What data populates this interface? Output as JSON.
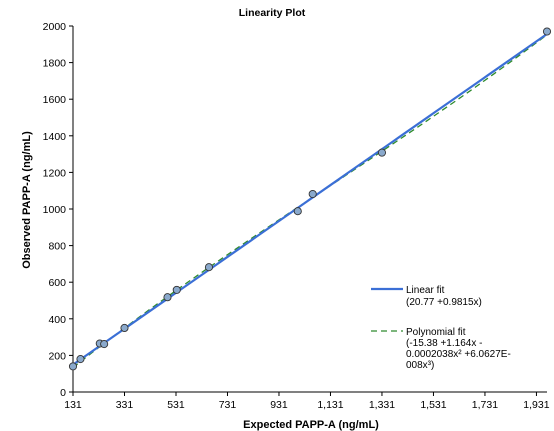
{
  "chart_data": {
    "type": "scatter",
    "title": "Linearity Plot",
    "xlabel": "Expected PAPP-A (ng/mL)",
    "ylabel": "Observed PAPP-A (ng/mL)",
    "xlim": [
      131,
      1972
    ],
    "ylim": [
      0,
      2000
    ],
    "x_ticks": [
      131,
      331,
      531,
      731,
      931,
      1131,
      1331,
      1531,
      1731,
      1931
    ],
    "x_tick_labels": [
      "131",
      "331",
      "531",
      "731",
      "931",
      "1,131",
      "1,331",
      "1,531",
      "1,731",
      "1,931"
    ],
    "y_ticks": [
      0,
      200,
      400,
      600,
      800,
      1000,
      1200,
      1400,
      1600,
      1800,
      2000
    ],
    "y_tick_labels": [
      "0",
      "200",
      "400",
      "600",
      "800",
      "1000",
      "1200",
      "1400",
      "1600",
      "1800",
      "2000"
    ],
    "grid": false,
    "legend_position": "bottom-right",
    "points": {
      "x": [
        131,
        160,
        235,
        252,
        331,
        498,
        534,
        659,
        1004,
        1062,
        1331,
        1972
      ],
      "y": [
        140,
        180,
        265,
        262,
        350,
        518,
        558,
        682,
        988,
        1082,
        1308,
        1970
      ],
      "color": "#8aa9cc"
    },
    "series": [
      {
        "name": "Linear fit",
        "label_lines": [
          "Linear fit",
          "(20.77  +0.9815x)"
        ],
        "kind": "linear",
        "coefficients": [
          20.77,
          0.9815
        ],
        "color": "#3b6fd6",
        "style": "solid"
      },
      {
        "name": "Polynomial fit",
        "label_lines": [
          "Polynomial fit",
          "(-15.38  +1.164x  -",
          "0.0002038x²  +6.0627E-",
          "008x³)"
        ],
        "kind": "polynomial",
        "coefficients": [
          -15.38,
          1.164,
          -0.0002038,
          6.0627e-08
        ],
        "color": "#2e8b2e",
        "style": "dashed"
      }
    ]
  }
}
